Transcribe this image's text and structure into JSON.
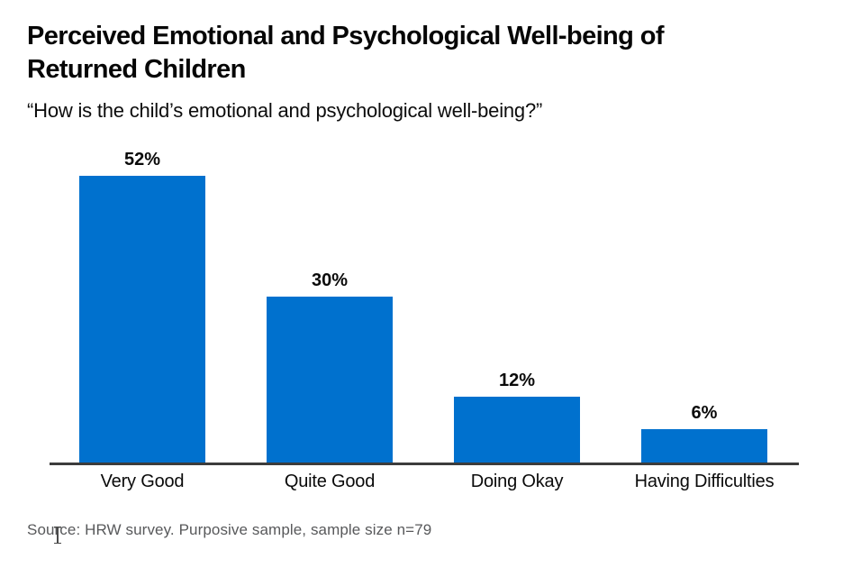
{
  "chart_data": {
    "type": "bar",
    "title": "Perceived Emotional and Psychological Well-being of Returned Children",
    "subtitle": "“How is the child’s emotional and psychological well-being?”",
    "categories": [
      "Very Good",
      "Quite Good",
      "Doing Okay",
      "Having Difficulties"
    ],
    "values": [
      52,
      30,
      12,
      6
    ],
    "value_labels": [
      "52%",
      "30%",
      "12%",
      "6%"
    ],
    "ylim": [
      0,
      55
    ],
    "xlabel": "",
    "ylabel": "",
    "grid": false,
    "legend": false,
    "bar_color": "#0071CE",
    "axis_color": "#3c3c3c",
    "source": "Source: HRW survey. Purposive sample, sample size n=79"
  }
}
